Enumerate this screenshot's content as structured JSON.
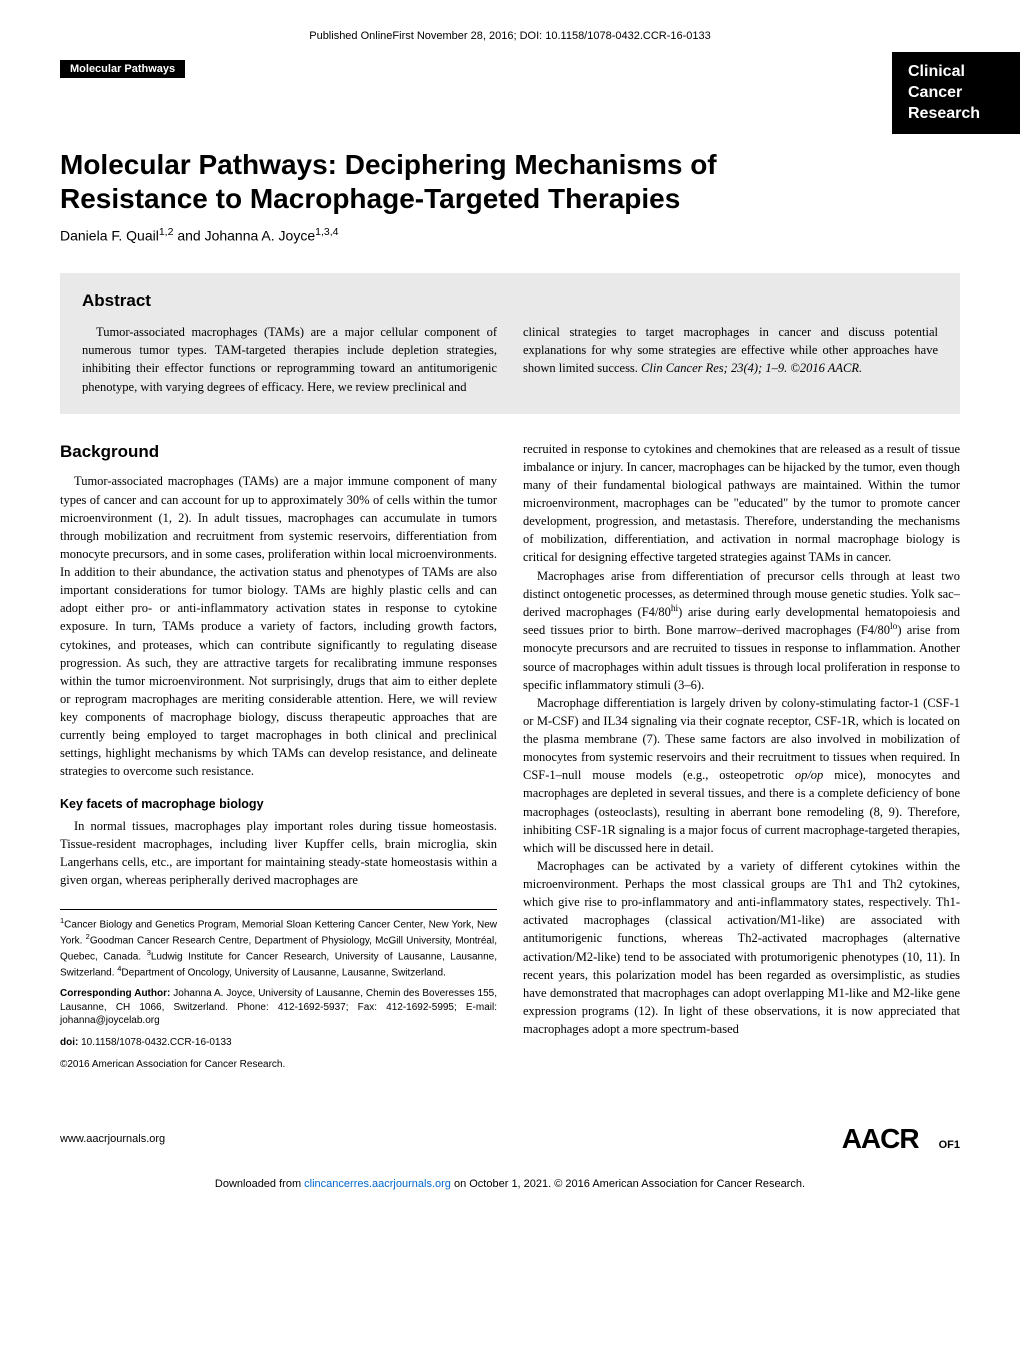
{
  "top_meta": "Published OnlineFirst November 28, 2016; DOI: 10.1158/1078-0432.CCR-16-0133",
  "header": {
    "section_label": "Molecular Pathways",
    "journal_name": "Clinical\nCancer\nResearch"
  },
  "title": "Molecular Pathways: Deciphering Mechanisms of Resistance to Macrophage-Targeted Therapies",
  "authors_html": "Daniela F. Quail<sup>1,2</sup> and Johanna A. Joyce<sup>1,3,4</sup>",
  "abstract": {
    "heading": "Abstract",
    "left": "Tumor-associated macrophages (TAMs) are a major cellular component of numerous tumor types. TAM-targeted therapies include depletion strategies, inhibiting their effector functions or reprogramming toward an antitumorigenic phenotype, with varying degrees of efficacy. Here, we review preclinical and",
    "right_html": "clinical strategies to target macrophages in cancer and discuss potential explanations for why some strategies are effective while other approaches have shown limited success. <em class=\"italic\">Clin Cancer Res; 23(4); 1–9. ©2016 AACR.</em>"
  },
  "body": {
    "left": {
      "heading": "Background",
      "p1": "Tumor-associated macrophages (TAMs) are a major immune component of many types of cancer and can account for up to approximately 30% of cells within the tumor microenvironment (1, 2). In adult tissues, macrophages can accumulate in tumors through mobilization and recruitment from systemic reservoirs, differentiation from monocyte precursors, and in some cases, proliferation within local microenvironments. In addition to their abundance, the activation status and phenotypes of TAMs are also important considerations for tumor biology. TAMs are highly plastic cells and can adopt either pro- or anti-inflammatory activation states in response to cytokine exposure. In turn, TAMs produce a variety of factors, including growth factors, cytokines, and proteases, which can contribute significantly to regulating disease progression. As such, they are attractive targets for recalibrating immune responses within the tumor microenvironment. Not surprisingly, drugs that aim to either deplete or reprogram macrophages are meriting considerable attention. Here, we will review key components of macrophage biology, discuss therapeutic approaches that are currently being employed to target macrophages in both clinical and preclinical settings, highlight mechanisms by which TAMs can develop resistance, and delineate strategies to overcome such resistance.",
      "subheading": "Key facets of macrophage biology",
      "p2": "In normal tissues, macrophages play important roles during tissue homeostasis. Tissue-resident macrophages, including liver Kupffer cells, brain microglia, skin Langerhans cells, etc., are important for maintaining steady-state homeostasis within a given organ, whereas peripherally derived macrophages are"
    },
    "right": {
      "p1": "recruited in response to cytokines and chemokines that are released as a result of tissue imbalance or injury. In cancer, macrophages can be hijacked by the tumor, even though many of their fundamental biological pathways are maintained. Within the tumor microenvironment, macrophages can be \"educated\" by the tumor to promote cancer development, progression, and metastasis. Therefore, understanding the mechanisms of mobilization, differentiation, and activation in normal macrophage biology is critical for designing effective targeted strategies against TAMs in cancer.",
      "p2_html": "Macrophages arise from differentiation of precursor cells through at least two distinct ontogenetic processes, as determined through mouse genetic studies. Yolk sac–derived macrophages (F4/80<sup>hi</sup>) arise during early developmental hematopoiesis and seed tissues prior to birth. Bone marrow–derived macrophages (F4/80<sup>lo</sup>) arise from monocyte precursors and are recruited to tissues in response to inflammation. Another source of macrophages within adult tissues is through local proliferation in response to specific inflammatory stimuli (3–6).",
      "p3_html": "Macrophage differentiation is largely driven by colony-stimulating factor-1 (CSF-1 or M-CSF) and IL34 signaling via their cognate receptor, CSF-1R, which is located on the plasma membrane (7). These same factors are also involved in mobilization of monocytes from systemic reservoirs and their recruitment to tissues when required. In CSF-1–null mouse models (e.g., osteopetrotic <em class=\"italic\">op/op</em> mice), monocytes and macrophages are depleted in several tissues, and there is a complete deficiency of bone macrophages (osteoclasts), resulting in aberrant bone remodeling (8, 9). Therefore, inhibiting CSF-1R signaling is a major focus of current macrophage-targeted therapies, which will be discussed here in detail.",
      "p4": "Macrophages can be activated by a variety of different cytokines within the microenvironment. Perhaps the most classical groups are Th1 and Th2 cytokines, which give rise to pro-inflammatory and anti-inflammatory states, respectively. Th1-activated macrophages (classical activation/M1-like) are associated with antitumorigenic functions, whereas Th2-activated macrophages (alternative activation/M2-like) tend to be associated with protumorigenic phenotypes (10, 11). In recent years, this polarization model has been regarded as oversimplistic, as studies have demonstrated that macrophages can adopt overlapping M1-like and M2-like gene expression programs (12). In light of these observations, it is now appreciated that macrophages adopt a more spectrum-based"
    }
  },
  "footnotes": {
    "affiliations_html": "<sup>1</sup>Cancer Biology and Genetics Program, Memorial Sloan Kettering Cancer Center, New York, New York. <sup>2</sup>Goodman Cancer Research Centre, Department of Physiology, McGill University, Montréal, Quebec, Canada. <sup>3</sup>Ludwig Institute for Cancer Research, University of Lausanne, Lausanne, Switzerland. <sup>4</sup>Department of Oncology, University of Lausanne, Lausanne, Switzerland.",
    "corresponding_html": "<strong>Corresponding Author:</strong> Johanna A. Joyce, University of Lausanne, Chemin des Boveresses 155, Lausanne, CH 1066, Switzerland. Phone: 412-1692-5937; Fax: 412-1692-5995; E-mail: johanna@joycelab.org",
    "doi_html": "<strong>doi:</strong> 10.1158/1078-0432.CCR-16-0133",
    "copyright": "©2016 American Association for Cancer Research."
  },
  "footer": {
    "url": "www.aacrjournals.org",
    "logo": "AACR",
    "pagenum": "OF1"
  },
  "download_note_html": "Downloaded from <a href=\"#\">clincancerres.aacrjournals.org</a> on October 1, 2021. © 2016 American Association for Cancer Research."
}
